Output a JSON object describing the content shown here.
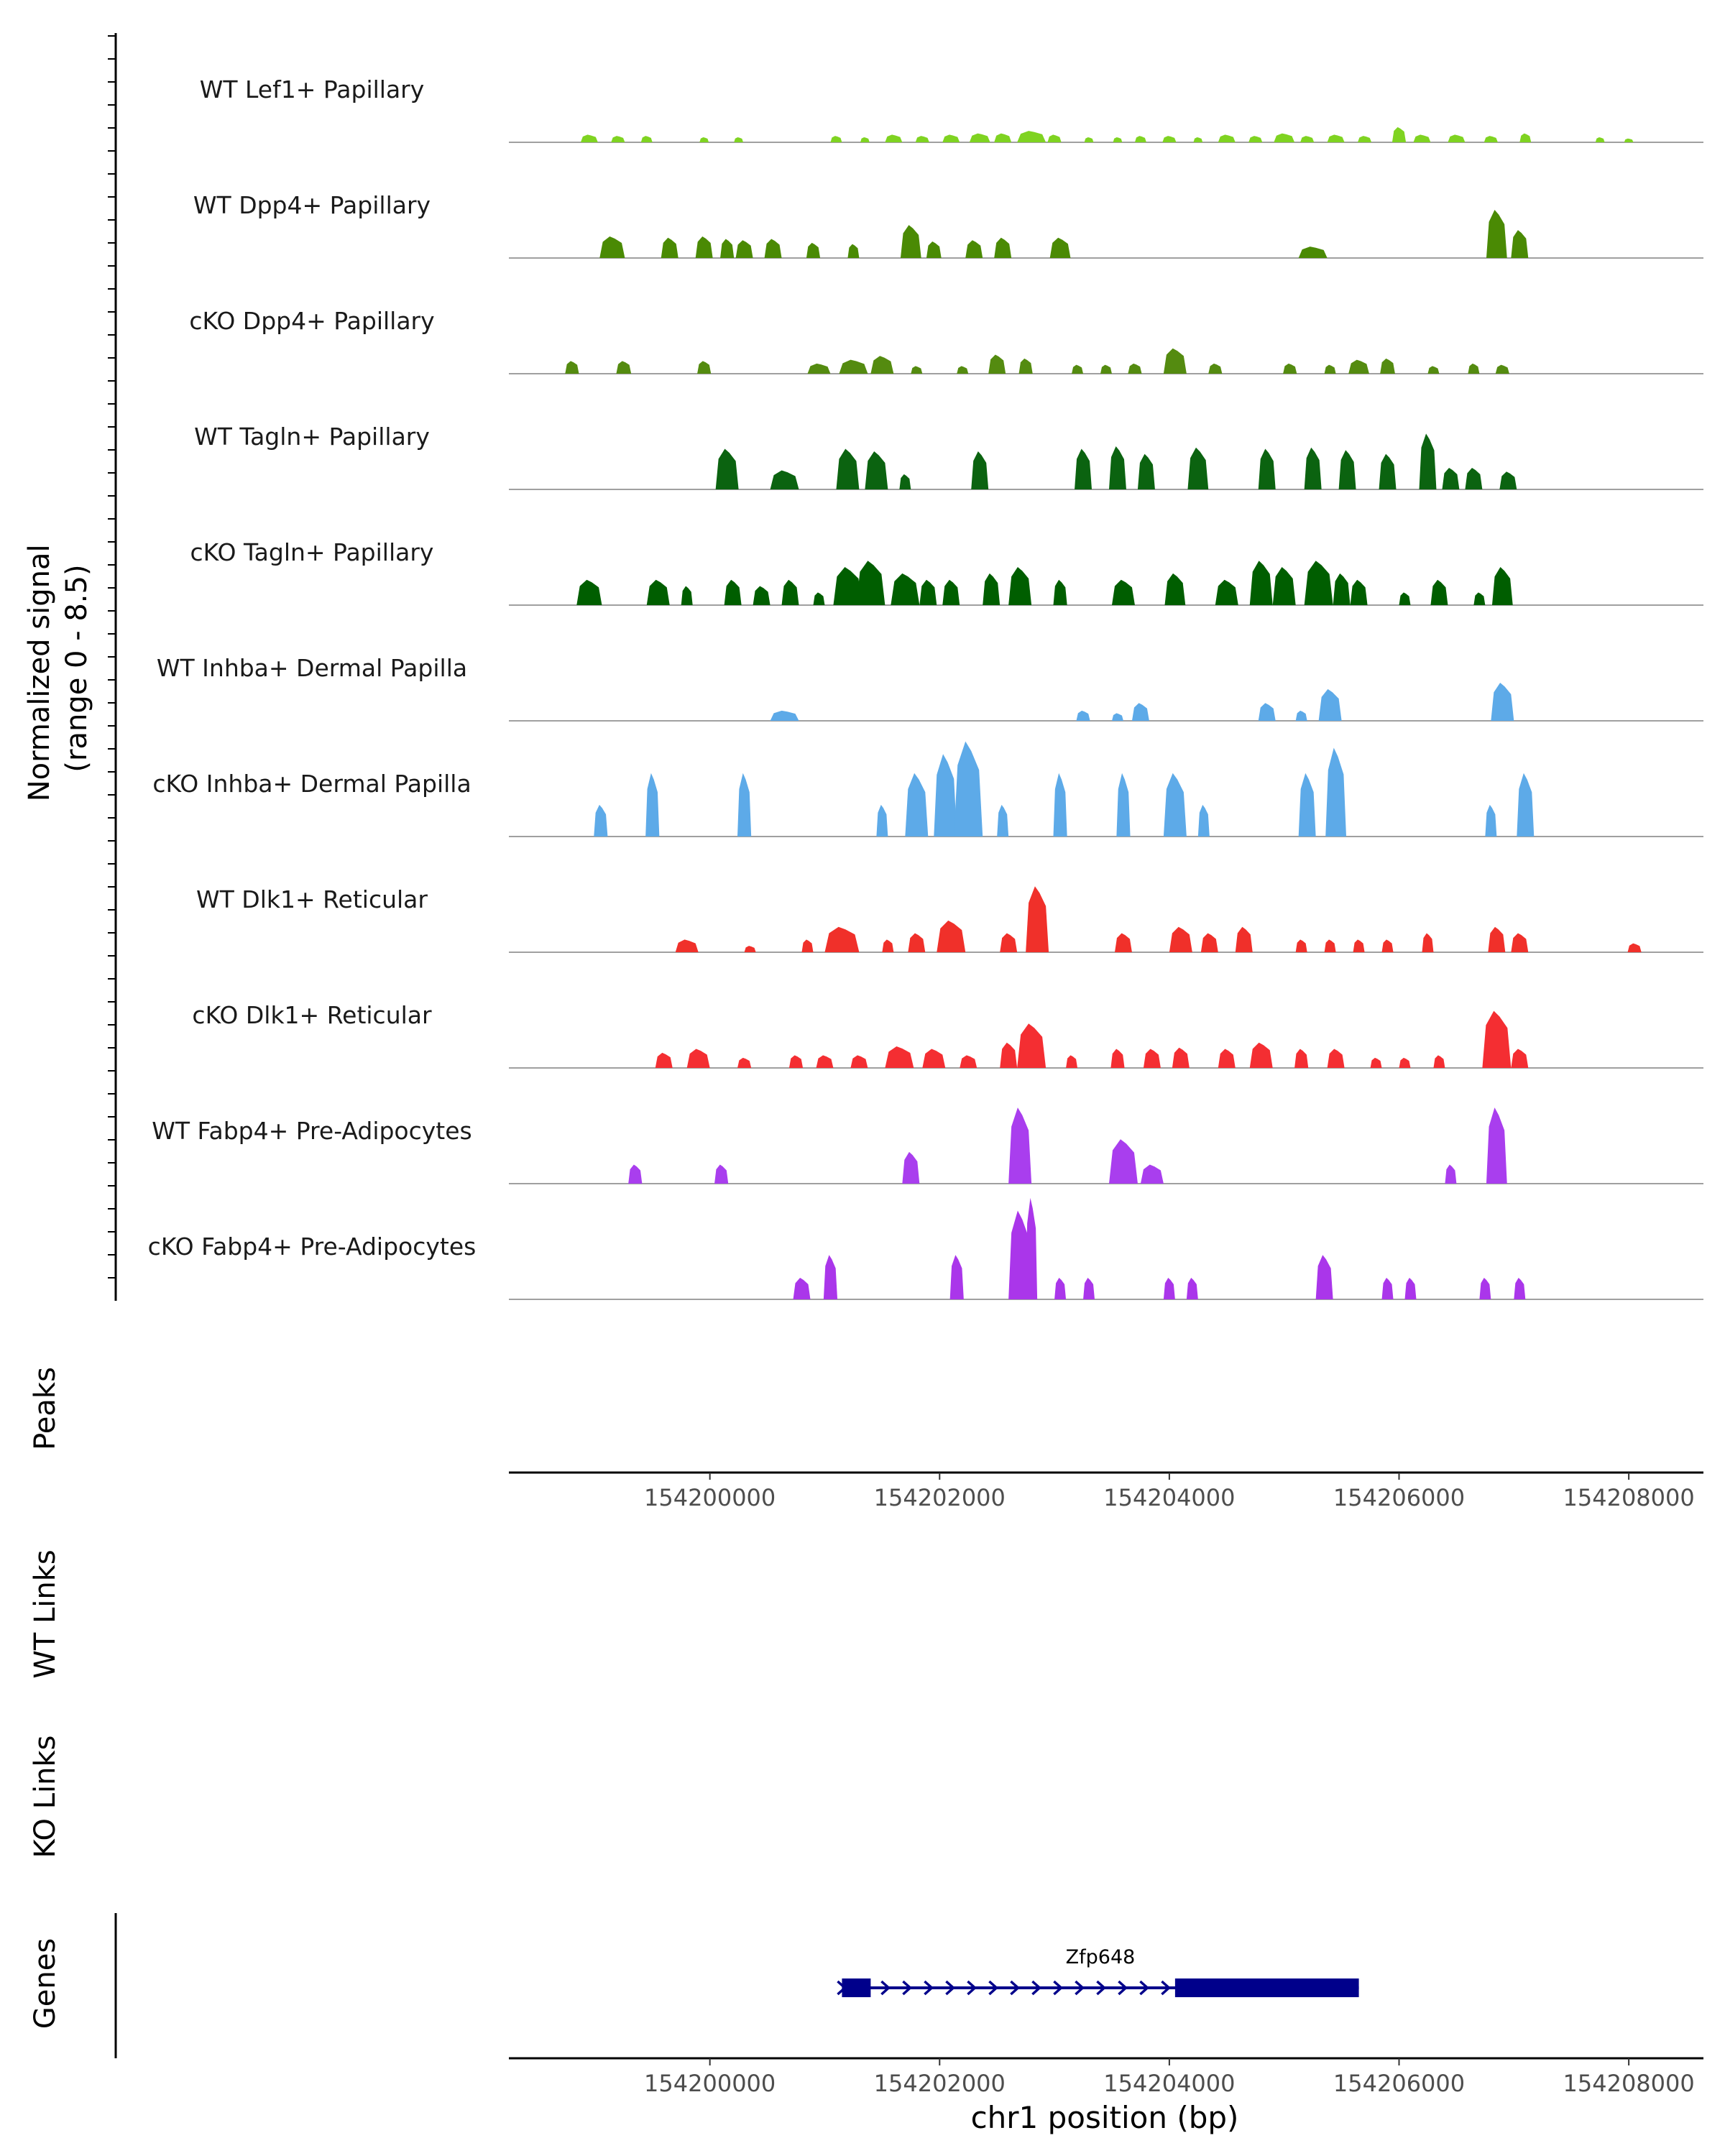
{
  "chart_data": {
    "type": "area",
    "title": "",
    "xlabel": "chr1 position (bp)",
    "ylabel": "Normalized signal\n(range 0 - 8.5)",
    "ylabel_lines": [
      "Normalized signal",
      "(range 0 - 8.5)"
    ],
    "ylim": [
      0,
      8.5
    ],
    "xlim": [
      154198250,
      154208650
    ],
    "x_ticks": [
      154200000,
      154202000,
      154204000,
      154206000,
      154208000
    ],
    "x_tick_labels": [
      "154200000",
      "154202000",
      "154204000",
      "154206000",
      "154208000"
    ],
    "panel_labels": {
      "peaks": "Peaks",
      "wt_links": "WT Links",
      "ko_links": "KO Links",
      "genes": "Genes"
    },
    "series": [
      {
        "name": "WT Lef1+ Papillary",
        "color": "#7FD321",
        "peaks": [
          [
            154198950,
            0.6,
            150
          ],
          [
            154199200,
            0.5,
            120
          ],
          [
            154199450,
            0.5,
            100
          ],
          [
            154199950,
            0.4,
            80
          ],
          [
            154200250,
            0.4,
            80
          ],
          [
            154201100,
            0.5,
            100
          ],
          [
            154201350,
            0.4,
            80
          ],
          [
            154201600,
            0.6,
            150
          ],
          [
            154201850,
            0.5,
            120
          ],
          [
            154202100,
            0.6,
            150
          ],
          [
            154202350,
            0.7,
            180
          ],
          [
            154202550,
            0.7,
            150
          ],
          [
            154202800,
            0.9,
            250
          ],
          [
            154203000,
            0.6,
            120
          ],
          [
            154203300,
            0.4,
            80
          ],
          [
            154203550,
            0.4,
            80
          ],
          [
            154203750,
            0.5,
            100
          ],
          [
            154204000,
            0.5,
            120
          ],
          [
            154204250,
            0.4,
            80
          ],
          [
            154204500,
            0.6,
            150
          ],
          [
            154204750,
            0.5,
            120
          ],
          [
            154205000,
            0.7,
            180
          ],
          [
            154205200,
            0.5,
            120
          ],
          [
            154205450,
            0.6,
            150
          ],
          [
            154205700,
            0.5,
            120
          ],
          [
            154206000,
            1.2,
            120
          ],
          [
            154206200,
            0.6,
            150
          ],
          [
            154206500,
            0.6,
            150
          ],
          [
            154206800,
            0.5,
            120
          ],
          [
            154207100,
            0.7,
            100
          ],
          [
            154207750,
            0.4,
            80
          ],
          [
            154208000,
            0.3,
            80
          ]
        ]
      },
      {
        "name": "WT Dpp4+ Papillary",
        "color": "#4A8A04",
        "peaks": [
          [
            154199150,
            1.7,
            220
          ],
          [
            154199650,
            1.6,
            150
          ],
          [
            154199950,
            1.7,
            150
          ],
          [
            154200150,
            1.5,
            120
          ],
          [
            154200300,
            1.4,
            150
          ],
          [
            154200550,
            1.5,
            150
          ],
          [
            154200900,
            1.2,
            120
          ],
          [
            154201250,
            1.1,
            100
          ],
          [
            154201750,
            2.6,
            180
          ],
          [
            154201950,
            1.3,
            130
          ],
          [
            154202300,
            1.4,
            150
          ],
          [
            154202550,
            1.6,
            150
          ],
          [
            154203050,
            1.6,
            180
          ],
          [
            154205250,
            0.9,
            250
          ],
          [
            154206850,
            3.8,
            180
          ],
          [
            154207050,
            2.2,
            150
          ]
        ]
      },
      {
        "name": "cKO Dpp4+ Papillary",
        "color": "#548B10",
        "peaks": [
          [
            154198800,
            1.0,
            120
          ],
          [
            154199250,
            1.0,
            130
          ],
          [
            154199950,
            1.0,
            120
          ],
          [
            154200950,
            0.8,
            200
          ],
          [
            154201250,
            1.1,
            250
          ],
          [
            154201500,
            1.4,
            200
          ],
          [
            154201800,
            0.6,
            100
          ],
          [
            154202200,
            0.6,
            100
          ],
          [
            154202500,
            1.5,
            150
          ],
          [
            154202750,
            1.2,
            120
          ],
          [
            154203200,
            0.7,
            100
          ],
          [
            154203450,
            0.7,
            100
          ],
          [
            154203700,
            0.8,
            120
          ],
          [
            154204050,
            2.0,
            200
          ],
          [
            154204400,
            0.8,
            120
          ],
          [
            154205050,
            0.8,
            120
          ],
          [
            154205400,
            0.7,
            100
          ],
          [
            154205650,
            1.1,
            180
          ],
          [
            154205900,
            1.2,
            130
          ],
          [
            154206300,
            0.6,
            100
          ],
          [
            154206650,
            0.8,
            100
          ],
          [
            154206900,
            0.7,
            120
          ]
        ]
      },
      {
        "name": "WT Tagln+ Papillary",
        "color": "#0B6310",
        "peaks": [
          [
            154200150,
            3.2,
            200
          ],
          [
            154200650,
            1.5,
            250
          ],
          [
            154201200,
            3.2,
            200
          ],
          [
            154201450,
            3.0,
            200
          ],
          [
            154201700,
            1.2,
            100
          ],
          [
            154202350,
            3.0,
            150
          ],
          [
            154203250,
            3.2,
            150
          ],
          [
            154203550,
            3.4,
            150
          ],
          [
            154203800,
            2.8,
            150
          ],
          [
            154204250,
            3.3,
            180
          ],
          [
            154204850,
            3.2,
            150
          ],
          [
            154205250,
            3.3,
            150
          ],
          [
            154205550,
            3.1,
            150
          ],
          [
            154205900,
            2.8,
            150
          ],
          [
            154206250,
            4.4,
            150
          ],
          [
            154206450,
            1.7,
            150
          ],
          [
            154206650,
            1.7,
            150
          ],
          [
            154206950,
            1.4,
            150
          ]
        ]
      },
      {
        "name": "cKO Tagln+ Papillary",
        "color": "#005E00",
        "peaks": [
          [
            154198950,
            2.0,
            220
          ],
          [
            154199550,
            2.0,
            200
          ],
          [
            154199800,
            1.5,
            100
          ],
          [
            154200200,
            2.0,
            150
          ],
          [
            154200450,
            1.5,
            150
          ],
          [
            154200700,
            2.0,
            150
          ],
          [
            154200950,
            1.0,
            100
          ],
          [
            154201200,
            3.0,
            250
          ],
          [
            154201400,
            3.5,
            250
          ],
          [
            154201700,
            2.5,
            250
          ],
          [
            154201900,
            2.0,
            150
          ],
          [
            154202100,
            2.0,
            150
          ],
          [
            154202450,
            2.5,
            150
          ],
          [
            154202700,
            3.0,
            200
          ],
          [
            154203050,
            2.0,
            120
          ],
          [
            154203600,
            2.0,
            200
          ],
          [
            154204050,
            2.5,
            180
          ],
          [
            154204500,
            2.0,
            200
          ],
          [
            154204800,
            3.5,
            200
          ],
          [
            154205000,
            3.0,
            200
          ],
          [
            154205300,
            3.5,
            250
          ],
          [
            154205500,
            2.5,
            150
          ],
          [
            154205650,
            2.0,
            150
          ],
          [
            154206050,
            1.0,
            100
          ],
          [
            154206350,
            2.0,
            150
          ],
          [
            154206700,
            1.0,
            100
          ],
          [
            154206900,
            3.0,
            180
          ]
        ]
      },
      {
        "name": "WT Inhba+ Dermal Papilla",
        "color": "#5DAAE8",
        "peaks": [
          [
            154200650,
            0.8,
            250
          ],
          [
            154203250,
            0.8,
            120
          ],
          [
            154203550,
            0.6,
            100
          ],
          [
            154203750,
            1.4,
            150
          ],
          [
            154204850,
            1.4,
            150
          ],
          [
            154205150,
            0.8,
            100
          ],
          [
            154205400,
            2.5,
            200
          ],
          [
            154206900,
            3.0,
            200
          ]
        ]
      },
      {
        "name": "cKO Inhba+ Dermal Papilla",
        "color": "#5DAAE8",
        "peaks": [
          [
            154199050,
            2.5,
            120
          ],
          [
            154199500,
            5.0,
            120
          ],
          [
            154200300,
            5.0,
            120
          ],
          [
            154201500,
            2.5,
            100
          ],
          [
            154201800,
            5.0,
            200
          ],
          [
            154202050,
            6.5,
            200
          ],
          [
            154202250,
            7.5,
            250
          ],
          [
            154202550,
            2.5,
            100
          ],
          [
            154203050,
            5.0,
            120
          ],
          [
            154203600,
            5.0,
            120
          ],
          [
            154204050,
            5.0,
            200
          ],
          [
            154204300,
            2.5,
            100
          ],
          [
            154205200,
            5.0,
            150
          ],
          [
            154205450,
            7.0,
            180
          ],
          [
            154206800,
            2.5,
            100
          ],
          [
            154207100,
            5.0,
            150
          ]
        ]
      },
      {
        "name": "WT Dlk1+ Reticular",
        "color": "#F0302A",
        "peaks": [
          [
            154199800,
            1.0,
            200
          ],
          [
            154200350,
            0.5,
            100
          ],
          [
            154200850,
            1.0,
            100
          ],
          [
            154201150,
            2.0,
            300
          ],
          [
            154201550,
            1.0,
            100
          ],
          [
            154201800,
            1.5,
            150
          ],
          [
            154202100,
            2.5,
            250
          ],
          [
            154202600,
            1.5,
            150
          ],
          [
            154202850,
            5.2,
            200
          ],
          [
            154203600,
            1.5,
            150
          ],
          [
            154204100,
            2.0,
            200
          ],
          [
            154204350,
            1.5,
            150
          ],
          [
            154204650,
            2.0,
            150
          ],
          [
            154205150,
            1.0,
            100
          ],
          [
            154205400,
            1.0,
            100
          ],
          [
            154205650,
            1.0,
            100
          ],
          [
            154205900,
            1.0,
            100
          ],
          [
            154206250,
            1.5,
            100
          ],
          [
            154206850,
            2.0,
            150
          ],
          [
            154207050,
            1.5,
            150
          ],
          [
            154208050,
            0.7,
            120
          ]
        ]
      },
      {
        "name": "cKO Dlk1+ Reticular",
        "color": "#F42E32",
        "peaks": [
          [
            154199600,
            1.2,
            150
          ],
          [
            154199900,
            1.5,
            200
          ],
          [
            154200300,
            0.8,
            120
          ],
          [
            154200750,
            1.0,
            120
          ],
          [
            154201000,
            1.0,
            150
          ],
          [
            154201300,
            1.0,
            150
          ],
          [
            154201650,
            1.7,
            250
          ],
          [
            154201950,
            1.5,
            200
          ],
          [
            154202250,
            1.0,
            150
          ],
          [
            154202800,
            3.5,
            250
          ],
          [
            154202600,
            2.0,
            150
          ],
          [
            154203150,
            1.0,
            100
          ],
          [
            154203550,
            1.5,
            120
          ],
          [
            154203850,
            1.5,
            150
          ],
          [
            154204100,
            1.6,
            150
          ],
          [
            154204500,
            1.5,
            150
          ],
          [
            154204800,
            2.0,
            200
          ],
          [
            154205150,
            1.5,
            120
          ],
          [
            154205450,
            1.5,
            150
          ],
          [
            154205800,
            0.8,
            100
          ],
          [
            154206050,
            0.8,
            100
          ],
          [
            154206350,
            1.0,
            100
          ],
          [
            154206850,
            4.5,
            250
          ],
          [
            154207050,
            1.5,
            150
          ]
        ]
      },
      {
        "name": "WT Fabp4+ Pre-Adipocytes",
        "color": "#A93EEE",
        "peaks": [
          [
            154199350,
            1.5,
            120
          ],
          [
            154200100,
            1.5,
            120
          ],
          [
            154201750,
            2.5,
            150
          ],
          [
            154202700,
            6.0,
            200
          ],
          [
            154203600,
            3.5,
            250
          ],
          [
            154203850,
            1.5,
            200
          ],
          [
            154206450,
            1.5,
            100
          ],
          [
            154206850,
            6.0,
            180
          ]
        ]
      },
      {
        "name": "cKO Fabp4+ Pre-Adipocytes",
        "color": "#AA36EA",
        "peaks": [
          [
            154200800,
            1.7,
            150
          ],
          [
            154201050,
            3.5,
            120
          ],
          [
            154202150,
            3.5,
            120
          ],
          [
            154202700,
            7.0,
            200
          ],
          [
            154202800,
            8.0,
            100
          ],
          [
            154203050,
            1.7,
            100
          ],
          [
            154203300,
            1.7,
            100
          ],
          [
            154204000,
            1.7,
            100
          ],
          [
            154204200,
            1.7,
            100
          ],
          [
            154205350,
            3.5,
            150
          ],
          [
            154205900,
            1.7,
            100
          ],
          [
            154206100,
            1.7,
            100
          ],
          [
            154206750,
            1.7,
            100
          ],
          [
            154207050,
            1.7,
            100
          ]
        ]
      }
    ],
    "genes": [
      {
        "name": "Zfp648",
        "start": 154201150,
        "end": 154205650,
        "strand": "+",
        "color": "#00008B",
        "exons": [
          [
            154201150,
            154201400
          ],
          [
            154204050,
            154205650
          ]
        ]
      }
    ]
  }
}
